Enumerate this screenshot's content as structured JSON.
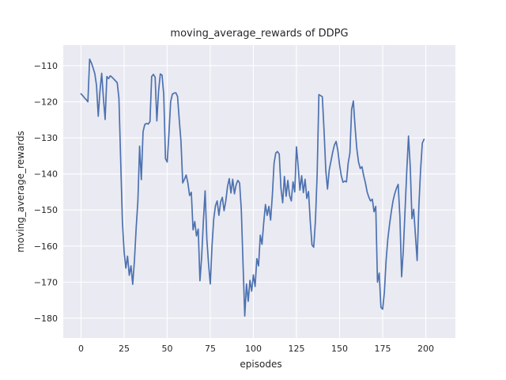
{
  "figure": {
    "title": "moving_average_rewards of DDPG",
    "xlabel": "episodes",
    "ylabel": "moving_average_rewards"
  },
  "style": {
    "figure_bg": "#ffffff",
    "axes_bg": "#eaeaf2",
    "grid_color": "#ffffff",
    "line_color": "#4c72b0",
    "text_color": "#262626"
  },
  "chart_data": {
    "type": "line",
    "title": "moving_average_rewards of DDPG",
    "xlabel": "episodes",
    "ylabel": "moving_average_rewards",
    "legend": null,
    "grid": true,
    "x_ticks": [
      0,
      25,
      50,
      75,
      100,
      125,
      150,
      175,
      200
    ],
    "y_ticks": [
      -110,
      -120,
      -130,
      -140,
      -150,
      -160,
      -170,
      -180
    ],
    "xlim": [
      -10.3,
      217.2
    ],
    "ylim": [
      -185.5,
      -104.3
    ],
    "series": [
      {
        "name": "moving_average_rewards",
        "x_start": 0,
        "x_step": 1,
        "values": [
          -117.8,
          -118.3,
          -118.9,
          -119.4,
          -120.0,
          -108.2,
          -109.2,
          -110.6,
          -112.2,
          -115.5,
          -124.0,
          -117.0,
          -112.1,
          -119.0,
          -124.9,
          -113.0,
          -113.6,
          -112.8,
          -113.2,
          -113.7,
          -114.2,
          -114.7,
          -119.0,
          -136.0,
          -153.0,
          -161.5,
          -166.1,
          -162.8,
          -168.1,
          -165.5,
          -170.6,
          -164.0,
          -155.0,
          -147.5,
          -132.3,
          -141.6,
          -128.3,
          -126.3,
          -126.0,
          -126.2,
          -125.5,
          -113.0,
          -112.4,
          -113.2,
          -125.3,
          -117.0,
          -112.3,
          -112.6,
          -118.0,
          -135.8,
          -136.7,
          -129.0,
          -120.0,
          -117.9,
          -117.6,
          -117.5,
          -118.5,
          -125.0,
          -131.0,
          -142.5,
          -141.5,
          -140.3,
          -142.5,
          -146.0,
          -145.1,
          -155.5,
          -153.2,
          -157.2,
          -155.3,
          -169.6,
          -163.0,
          -153.0,
          -144.7,
          -158.0,
          -165.0,
          -170.5,
          -160.0,
          -152.5,
          -148.8,
          -147.5,
          -151.5,
          -147.8,
          -146.5,
          -150.2,
          -147.5,
          -143.5,
          -141.3,
          -145.3,
          -141.5,
          -145.5,
          -143.0,
          -141.8,
          -142.5,
          -150.0,
          -165.0,
          -179.4,
          -170.5,
          -175.3,
          -169.5,
          -172.5,
          -168.0,
          -171.2,
          -163.5,
          -165.5,
          -157.0,
          -159.5,
          -153.5,
          -148.5,
          -151.5,
          -149.0,
          -152.8,
          -146.0,
          -137.0,
          -134.2,
          -133.8,
          -134.5,
          -144.0,
          -148.0,
          -140.7,
          -146.2,
          -141.8,
          -146.0,
          -147.5,
          -142.2,
          -145.0,
          -132.5,
          -138.0,
          -144.5,
          -140.5,
          -145.2,
          -141.5,
          -146.8,
          -144.9,
          -153.2,
          -159.7,
          -160.3,
          -153.0,
          -140.0,
          -118.0,
          -118.3,
          -118.6,
          -128.0,
          -139.0,
          -144.2,
          -138.9,
          -136.5,
          -134.0,
          -132.0,
          -131.0,
          -133.5,
          -137.5,
          -140.5,
          -142.3,
          -142.0,
          -142.2,
          -137.0,
          -134.2,
          -122.1,
          -119.8,
          -127.0,
          -133.0,
          -136.7,
          -138.5,
          -138.0,
          -140.5,
          -142.5,
          -145.0,
          -146.5,
          -147.5,
          -147.0,
          -150.5,
          -149.0,
          -170.0,
          -167.5,
          -177.0,
          -177.5,
          -172.8,
          -164.0,
          -158.0,
          -154.0,
          -150.5,
          -147.5,
          -145.5,
          -144.0,
          -142.9,
          -152.0,
          -168.5,
          -161.0,
          -150.0,
          -139.0,
          -129.5,
          -138.0,
          -152.4,
          -149.8,
          -157.0,
          -164.0,
          -149.0,
          -138.9,
          -131.5,
          -130.4
        ]
      }
    ]
  }
}
